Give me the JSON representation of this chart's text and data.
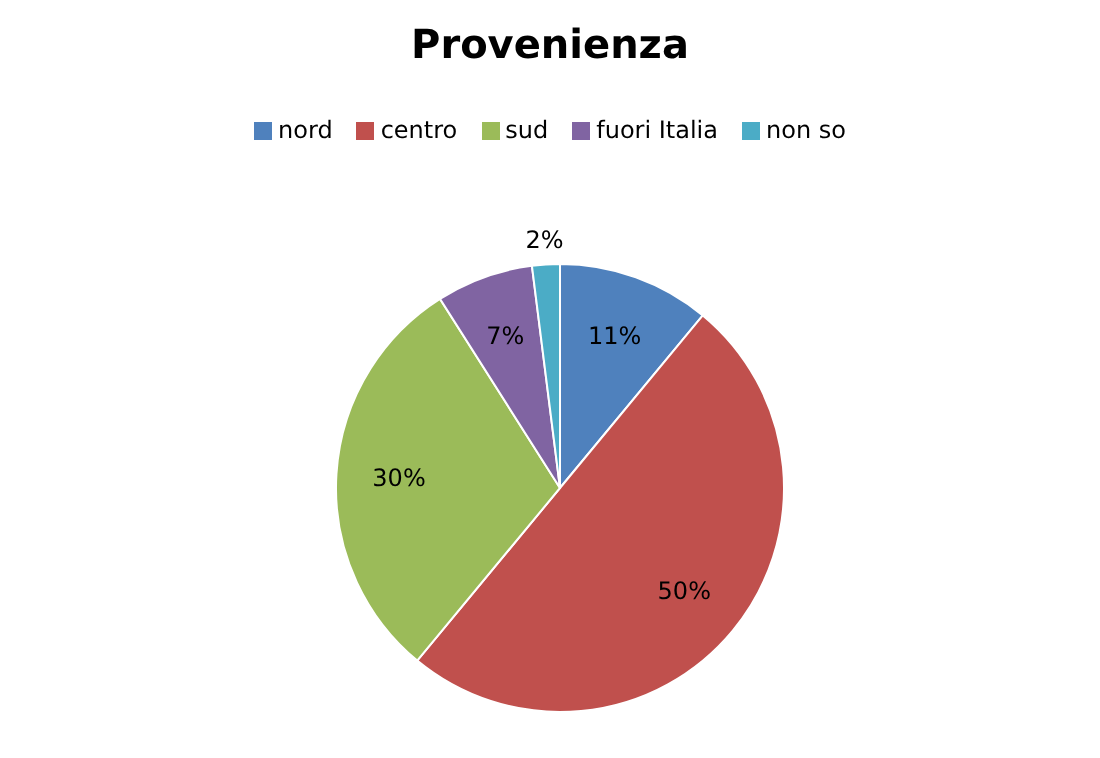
{
  "chart_data": {
    "type": "pie",
    "title": "Provenienza",
    "categories": [
      "nord",
      "centro",
      "sud",
      "fuori Italia",
      "non so"
    ],
    "values": [
      11,
      50,
      30,
      7,
      2
    ],
    "colors": [
      "#4f81bd",
      "#c0504d",
      "#9bbb59",
      "#8064a2",
      "#4bacc6"
    ],
    "value_labels": [
      "11%",
      "50%",
      "30%",
      "7%",
      "2%"
    ],
    "legend": "top"
  }
}
